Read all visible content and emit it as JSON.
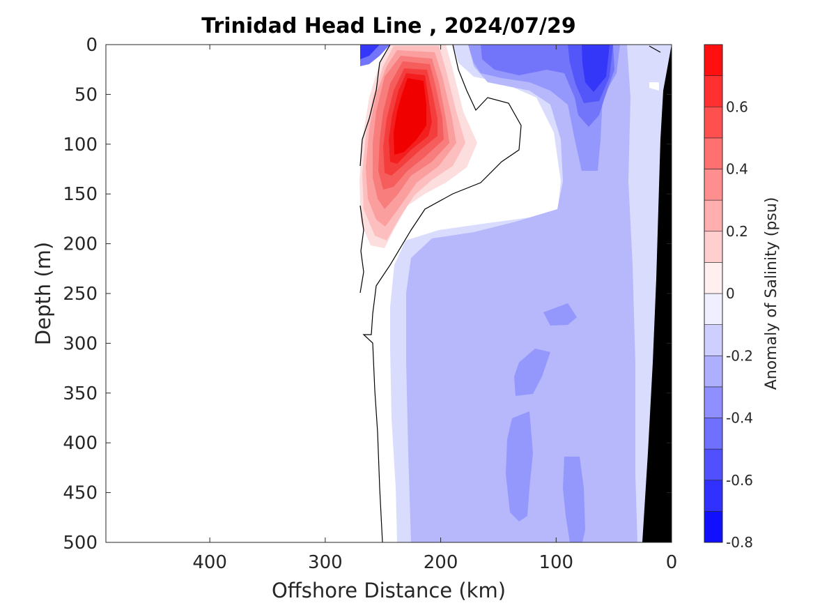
{
  "chart_data": {
    "type": "heatmap",
    "title": "Trinidad Head Line , 2024/07/29",
    "xlabel": "Offshore Distance (km)",
    "ylabel": "Depth (m)",
    "xlim": [
      490,
      0
    ],
    "ylim": [
      0,
      500
    ],
    "x_reversed": true,
    "y_reversed": true,
    "x_ticks": [
      400,
      300,
      200,
      100,
      0
    ],
    "y_ticks": [
      0,
      50,
      100,
      150,
      200,
      250,
      300,
      350,
      400,
      450,
      500
    ],
    "colorbar": {
      "label": "Anomaly of Salinity (psu)",
      "range": [
        -0.8,
        0.8
      ],
      "step": 0.1,
      "ticks": [
        -0.8,
        -0.6,
        -0.4,
        -0.2,
        0,
        0.2,
        0.4,
        0.6
      ],
      "tick_labels": [
        "-0.8",
        "-0.6",
        "-0.4",
        "-0.2",
        "0",
        "0.2",
        "0.4",
        "0.6"
      ]
    },
    "features": [
      {
        "name": "positive-anomaly-core",
        "distance_km": [
          190,
          270
        ],
        "depth_m": [
          0,
          210
        ],
        "max_anomaly": 0.8
      },
      {
        "name": "nearshore-negative-core",
        "distance_km": [
          50,
          90
        ],
        "depth_m": [
          0,
          60
        ],
        "min_anomaly": -0.6
      },
      {
        "name": "offshore-negative-band",
        "distance_km": [
          30,
          235
        ],
        "depth_m": [
          200,
          500
        ],
        "typical_anomaly": -0.2
      }
    ],
    "bottom_mask": "black",
    "grid": false,
    "legend": "colorbar-right"
  }
}
